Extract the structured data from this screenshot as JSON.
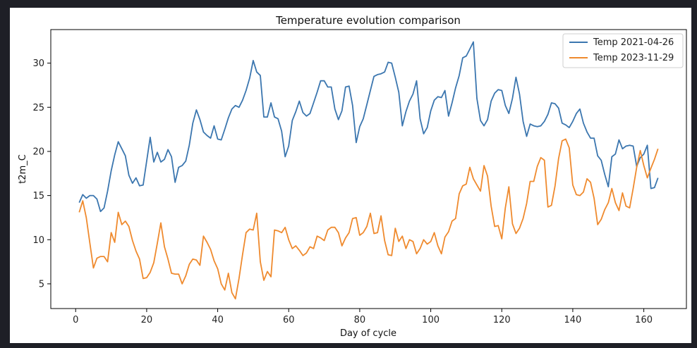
{
  "chart_data": {
    "type": "line",
    "title": "Temperature evolution comparison",
    "xlabel": "Day of cycle",
    "ylabel": "t2m_C",
    "xlim": [
      -7,
      172
    ],
    "ylim": [
      2.2,
      33.8
    ],
    "xticks": [
      0,
      20,
      40,
      60,
      80,
      100,
      120,
      140,
      160
    ],
    "yticks": [
      5,
      10,
      15,
      20,
      25,
      30
    ],
    "grid": false,
    "legend_position": "top-right",
    "series": [
      {
        "name": "Temp 2021-04-26",
        "color": "#3b76af",
        "x": [
          1,
          2,
          3,
          4,
          5,
          6,
          7,
          8,
          9,
          10,
          11,
          12,
          13,
          14,
          15,
          16,
          17,
          18,
          19,
          20,
          21,
          22,
          23,
          24,
          25,
          26,
          27,
          28,
          29,
          30,
          31,
          32,
          33,
          34,
          35,
          36,
          37,
          38,
          39,
          40,
          41,
          42,
          43,
          44,
          45,
          46,
          47,
          48,
          49,
          50,
          51,
          52,
          53,
          54,
          55,
          56,
          57,
          58,
          59,
          60,
          61,
          62,
          63,
          64,
          65,
          66,
          67,
          68,
          69,
          70,
          71,
          72,
          73,
          74,
          75,
          76,
          77,
          78,
          79,
          80,
          81,
          82,
          83,
          84,
          85,
          86,
          87,
          88,
          89,
          90,
          91,
          92,
          93,
          94,
          95,
          96,
          97,
          98,
          99,
          100,
          101,
          102,
          103,
          104,
          105,
          106,
          107,
          108,
          109,
          110,
          111,
          112,
          113,
          114,
          115,
          116,
          117,
          118,
          119,
          120,
          121,
          122,
          123,
          124,
          125,
          126,
          127,
          128,
          129,
          130,
          131,
          132,
          133,
          134,
          135,
          136,
          137,
          138,
          139,
          140,
          141,
          142,
          143,
          144,
          145,
          146,
          147,
          148,
          149,
          150,
          151,
          152,
          153,
          154,
          155,
          156,
          157,
          158,
          159,
          160,
          161,
          162,
          163,
          164
        ],
        "y": [
          14.2,
          15.1,
          14.7,
          15.0,
          15.0,
          14.6,
          13.2,
          13.6,
          15.5,
          17.8,
          19.6,
          21.1,
          20.3,
          19.5,
          17.3,
          16.4,
          17.0,
          16.1,
          16.2,
          18.9,
          21.6,
          18.8,
          19.9,
          18.8,
          19.1,
          20.2,
          19.4,
          16.5,
          18.2,
          18.4,
          18.9,
          20.7,
          23.2,
          24.7,
          23.6,
          22.2,
          21.8,
          21.5,
          22.9,
          21.4,
          21.3,
          22.5,
          23.8,
          24.8,
          25.2,
          25.0,
          25.8,
          26.9,
          28.3,
          30.3,
          29.0,
          28.6,
          23.9,
          23.9,
          25.5,
          23.9,
          23.7,
          22.3,
          19.4,
          20.6,
          23.5,
          24.5,
          25.7,
          24.4,
          24.0,
          24.3,
          25.5,
          26.7,
          28.0,
          28.0,
          27.3,
          27.3,
          24.8,
          23.6,
          24.6,
          27.3,
          27.4,
          25.2,
          21.0,
          22.8,
          23.7,
          25.3,
          26.9,
          28.5,
          28.7,
          28.8,
          29.0,
          30.1,
          30.0,
          28.4,
          26.7,
          22.9,
          24.5,
          25.7,
          26.5,
          28.0,
          23.7,
          22.0,
          22.7,
          24.6,
          25.8,
          26.2,
          26.1,
          26.9,
          24.0,
          25.5,
          27.2,
          28.6,
          30.6,
          30.8,
          31.6,
          32.4,
          26.0,
          23.5,
          22.9,
          23.6,
          25.7,
          26.6,
          27.0,
          26.9,
          25.2,
          24.3,
          26.0,
          28.4,
          26.5,
          23.4,
          21.7,
          23.1,
          22.9,
          22.8,
          22.9,
          23.4,
          24.2,
          25.5,
          25.4,
          24.9,
          23.2,
          23.0,
          22.7,
          23.4,
          24.3,
          24.8,
          23.2,
          22.2,
          21.5,
          21.5,
          19.5,
          19.0,
          17.4,
          16.0,
          19.4,
          19.7,
          21.3,
          20.3,
          20.6,
          20.7,
          20.6,
          18.3,
          19.3,
          19.7,
          20.7,
          15.8,
          15.9,
          17.0
        ]
      },
      {
        "name": "Temp 2023-11-29",
        "color": "#ef8a2e",
        "x": [
          1,
          2,
          3,
          4,
          5,
          6,
          7,
          8,
          9,
          10,
          11,
          12,
          13,
          14,
          15,
          16,
          17,
          18,
          19,
          20,
          21,
          22,
          23,
          24,
          25,
          26,
          27,
          28,
          29,
          30,
          31,
          32,
          33,
          34,
          35,
          36,
          37,
          38,
          39,
          40,
          41,
          42,
          43,
          44,
          45,
          46,
          47,
          48,
          49,
          50,
          51,
          52,
          53,
          54,
          55,
          56,
          57,
          58,
          59,
          60,
          61,
          62,
          63,
          64,
          65,
          66,
          67,
          68,
          69,
          70,
          71,
          72,
          73,
          74,
          75,
          76,
          77,
          78,
          79,
          80,
          81,
          82,
          83,
          84,
          85,
          86,
          87,
          88,
          89,
          90,
          91,
          92,
          93,
          94,
          95,
          96,
          97,
          98,
          99,
          100,
          101,
          102,
          103,
          104,
          105,
          106,
          107,
          108,
          109,
          110,
          111,
          112,
          113,
          114,
          115,
          116,
          117,
          118,
          119,
          120,
          121,
          122,
          123,
          124,
          125,
          126,
          127,
          128,
          129,
          130,
          131,
          132,
          133,
          134,
          135,
          136,
          137,
          138,
          139,
          140,
          141,
          142,
          143,
          144,
          145,
          146,
          147,
          148,
          149,
          150,
          151,
          152,
          153,
          154,
          155,
          156,
          157,
          158,
          159,
          160,
          161,
          162,
          163,
          164
        ],
        "y": [
          13.1,
          14.4,
          12.5,
          9.6,
          6.8,
          7.9,
          8.1,
          8.1,
          7.5,
          10.8,
          9.7,
          13.1,
          11.7,
          12.1,
          11.5,
          9.9,
          8.7,
          7.8,
          5.6,
          5.7,
          6.3,
          7.4,
          9.6,
          11.9,
          9.2,
          7.8,
          6.2,
          6.1,
          6.1,
          5.0,
          5.9,
          7.2,
          7.8,
          7.7,
          7.1,
          10.4,
          9.7,
          8.9,
          7.6,
          6.7,
          5.0,
          4.3,
          6.2,
          4.0,
          3.3,
          5.6,
          8.3,
          10.8,
          11.2,
          11.1,
          13.0,
          7.5,
          5.4,
          6.4,
          5.8,
          11.1,
          11.0,
          10.8,
          11.4,
          10.0,
          9.0,
          9.3,
          8.8,
          8.2,
          8.5,
          9.2,
          9.0,
          10.4,
          10.2,
          9.9,
          11.1,
          11.4,
          11.4,
          10.8,
          9.3,
          10.2,
          10.8,
          12.4,
          12.5,
          10.5,
          10.8,
          11.5,
          13.0,
          10.7,
          10.8,
          12.7,
          9.9,
          8.3,
          8.2,
          11.3,
          9.8,
          10.4,
          9.0,
          10.0,
          9.8,
          8.4,
          9.0,
          10.0,
          9.5,
          9.8,
          10.8,
          9.3,
          8.4,
          10.3,
          10.9,
          12.1,
          12.4,
          15.2,
          16.1,
          16.3,
          18.2,
          16.9,
          16.2,
          15.5,
          18.4,
          17.2,
          13.8,
          11.5,
          11.6,
          10.1,
          13.6,
          16.0,
          11.8,
          10.7,
          11.3,
          12.4,
          14.1,
          16.6,
          16.6,
          18.3,
          19.3,
          19.0,
          13.7,
          13.9,
          16.1,
          19.2,
          21.2,
          21.4,
          20.4,
          16.2,
          15.1,
          15.0,
          15.4,
          16.9,
          16.5,
          14.7,
          11.7,
          12.3,
          13.4,
          14.2,
          15.8,
          14.2,
          13.3,
          15.3,
          13.8,
          13.6,
          15.8,
          18.2,
          20.1,
          18.4,
          17.0,
          18.1,
          19.1,
          20.3
        ]
      }
    ]
  }
}
